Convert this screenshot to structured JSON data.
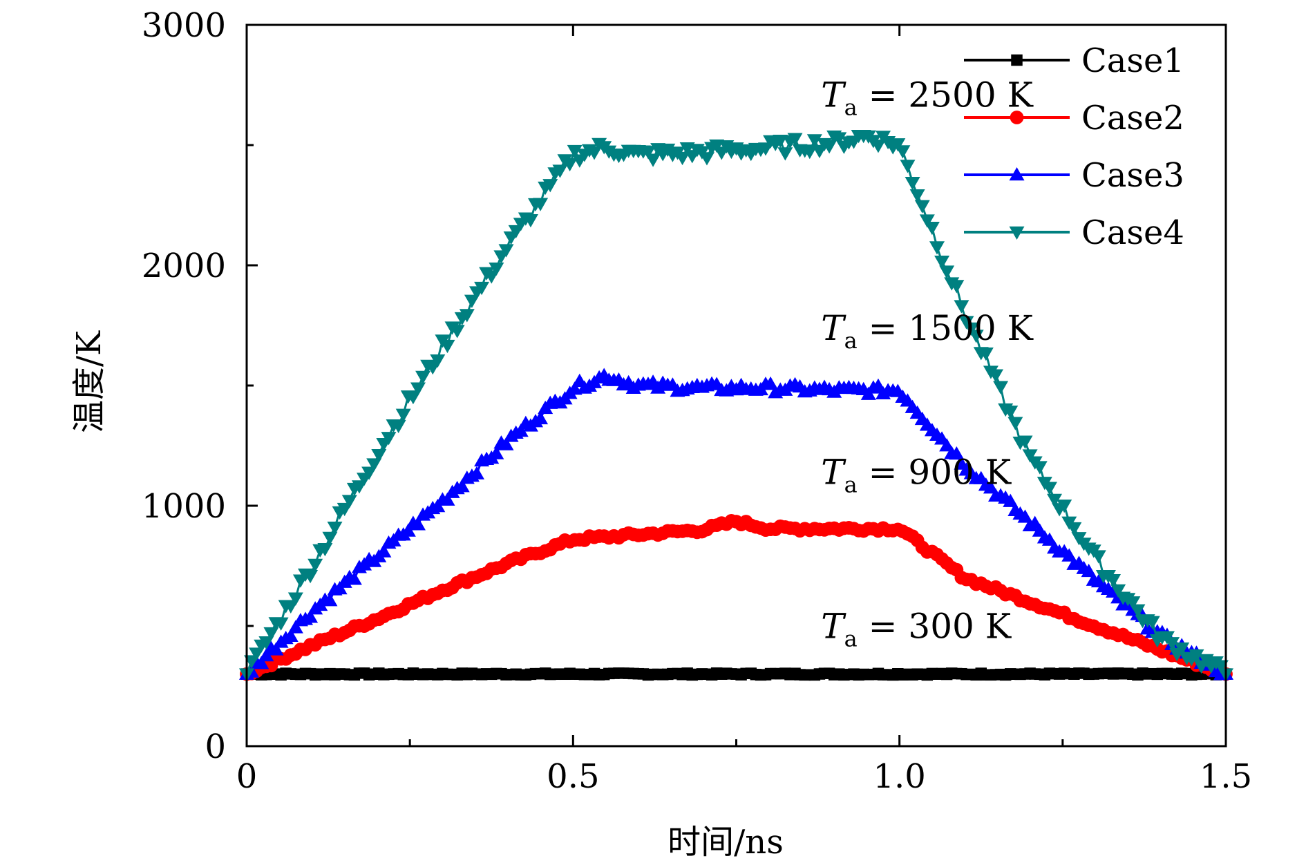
{
  "colors": {
    "case1": "#000000",
    "case2": "#ff0000",
    "case3": "#0000ff",
    "case4": "#008080"
  },
  "chart_data": {
    "type": "line",
    "title": "",
    "xlabel": "时间/ns",
    "ylabel": "温度/K",
    "xlim": [
      0,
      1.5
    ],
    "ylim": [
      0,
      3000
    ],
    "x_ticks": [
      "0",
      "0.5",
      "1.0",
      "1.5"
    ],
    "y_ticks": [
      "0",
      "1000",
      "2000",
      "3000"
    ],
    "x_ticks_values": [
      0,
      0.5,
      1.0,
      1.5
    ],
    "y_tick_values": [
      0,
      1000,
      2000,
      3000
    ],
    "x_minor_ticks": [
      0.25,
      0.75,
      1.25
    ],
    "y_minor_ticks": [
      500,
      1500,
      2500
    ],
    "grid": false,
    "legend_position": "top-right",
    "x": [
      0,
      0.5,
      1.0,
      1.5
    ],
    "series": [
      {
        "name": "Case1",
        "marker": "square",
        "color": "#000000",
        "x": [
          0,
          0.1,
          0.2,
          0.3,
          0.4,
          0.5,
          0.6,
          0.7,
          0.8,
          0.9,
          1.0,
          1.1,
          1.2,
          1.3,
          1.4,
          1.5
        ],
        "values": [
          300,
          300,
          300,
          300,
          300,
          300,
          300,
          300,
          300,
          300,
          300,
          300,
          300,
          300,
          300,
          300
        ]
      },
      {
        "name": "Case2",
        "marker": "circle",
        "color": "#ff0000",
        "x": [
          0,
          0.1,
          0.2,
          0.3,
          0.4,
          0.5,
          0.6,
          0.7,
          0.75,
          0.8,
          0.9,
          1.0,
          1.1,
          1.2,
          1.3,
          1.4,
          1.5
        ],
        "values": [
          300,
          420,
          530,
          650,
          760,
          860,
          880,
          900,
          935,
          905,
          905,
          905,
          700,
          600,
          500,
          400,
          300
        ]
      },
      {
        "name": "Case3",
        "marker": "triangle-up",
        "color": "#0000ff",
        "x": [
          0,
          0.1,
          0.2,
          0.3,
          0.4,
          0.5,
          0.55,
          0.6,
          0.7,
          0.8,
          0.9,
          1.0,
          1.1,
          1.2,
          1.3,
          1.4,
          1.5
        ],
        "values": [
          300,
          560,
          790,
          1020,
          1270,
          1490,
          1540,
          1500,
          1490,
          1490,
          1480,
          1480,
          1170,
          930,
          690,
          460,
          300
        ]
      },
      {
        "name": "Case4",
        "marker": "triangle-down",
        "color": "#008080",
        "x": [
          0,
          0.1,
          0.2,
          0.3,
          0.4,
          0.5,
          0.55,
          0.6,
          0.7,
          0.8,
          0.9,
          0.95,
          1.0,
          1.1,
          1.2,
          1.3,
          1.4,
          1.5
        ],
        "values": [
          300,
          750,
          1220,
          1660,
          2080,
          2460,
          2490,
          2460,
          2470,
          2490,
          2510,
          2540,
          2500,
          1800,
          1200,
          780,
          450,
          300
        ]
      }
    ],
    "annotations": [
      {
        "prefix": "T",
        "subscript": "a",
        "text": " = 2500 K",
        "x": 0.88,
        "y": 2660
      },
      {
        "prefix": "T",
        "subscript": "a",
        "text": " = 1500 K",
        "x": 0.88,
        "y": 1690
      },
      {
        "prefix": "T",
        "subscript": "a",
        "text": " = 900 K",
        "x": 0.88,
        "y": 1090
      },
      {
        "prefix": "T",
        "subscript": "a",
        "text": " = 300 K",
        "x": 0.88,
        "y": 450
      }
    ]
  }
}
